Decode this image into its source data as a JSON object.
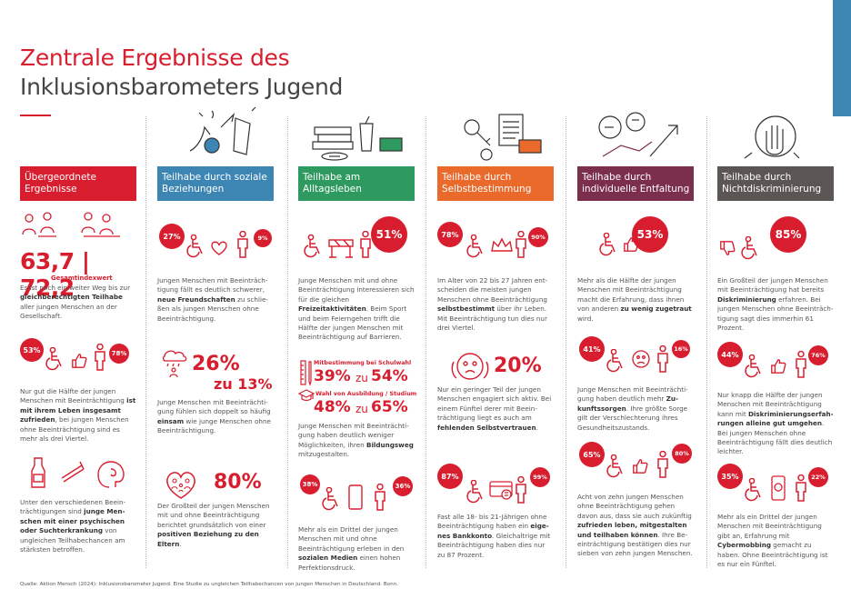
{
  "header": {
    "line1": "Zentrale Ergebnisse des",
    "line2": "Inklusionsbarometers Jugend"
  },
  "colors": {
    "red": "#d81e2e",
    "blue": "#3d86b4",
    "green": "#2f9a5f",
    "orange": "#ea6a2c",
    "purple": "#7c2f4c",
    "gray": "#5b5653"
  },
  "columns": [
    {
      "title": "Übergeordnete Ergebnisse",
      "index": "63,7 | 72,2",
      "index_label": "Gesamtindexwert",
      "p1": [
        "Es ist noch ein weiter Weg bis zur ",
        {
          "b": "gleichberechtigten Teilhabe"
        },
        " aller jungen Menschen an der Gesellschaft."
      ],
      "pct_a": "53%",
      "pct_b": "78%",
      "p2": [
        "Nur gut die Hälfte der jungen Menschen mit Beeinträchtigung ",
        {
          "b": "ist mit ihrem Leben insgesamt zufrieden"
        },
        ", bei jungen Menschen ohne Beeinträchtigung sind es mehr als drei Viertel."
      ],
      "p3": [
        "Unter den verschiedenen Beein­trächtigungen sind ",
        {
          "b": "junge Men­schen mit einer psychischen oder Suchterkrankung"
        },
        " von ungleichen Teilhabechancen am stärksten betroffen."
      ]
    },
    {
      "title": "Teilhabe durch soziale Beziehungen",
      "pct_a": "27%",
      "pct_b": "9%",
      "p1": [
        "Jungen Menschen mit Beeinträch­tigung fällt es deutlich schwerer, ",
        {
          "b": "neue Freundschaften"
        },
        " zu schlie­ßen als jungen Menschen ohne Beeinträchtigung."
      ],
      "big_a": "26%",
      "big_b": "zu 13%",
      "p2": [
        "Junge Menschen mit Beeinträchti­gung fühlen sich doppelt so häufig ",
        {
          "b": "einsam"
        },
        " wie junge Menschen ohne Beeinträchtigung."
      ],
      "big_c": "80%",
      "p3": [
        "Der Großteil der jungen Menschen mit und ohne Beeinträchtigung berichtet grundsätzlich von einer ",
        {
          "b": "positiven Beziehung zu den Eltern"
        },
        "."
      ]
    },
    {
      "title": "Teilhabe am Alltagsleben",
      "pct_a": "51%",
      "p1": [
        "Junge Menschen mit und ohne Beeinträchtigung interessieren sich für die gleichen ",
        {
          "b": "Freizeitaktivitäten"
        },
        ". Beim Sport und beim Feiern­gehen trifft die Hälfte der jungen Men­schen mit Beeinträchtigung auf Barrieren."
      ],
      "lab1": "Mitbestimmung bei Schulwahl",
      "v1a": "39%",
      "v1zu": "zu",
      "v1b": "54%",
      "lab2": "Wahl von Ausbildung / Studium",
      "v2a": "48%",
      "v2zu": "zu",
      "v2b": "65%",
      "p2": [
        "Junge Menschen mit Beeinträchti­gung haben deutlich weniger Möglichkeiten, ihren ",
        {
          "b": "Bildungsweg"
        },
        " mitzugestalten."
      ],
      "pct_b": "38%",
      "pct_c": "36%",
      "p3": [
        "Mehr als ein Drittel der jungen Men­schen mit und ohne Beeinträchti­gung erleben in den ",
        {
          "b": "sozialen Medien"
        },
        " einen hohen Perfektionsdruck."
      ]
    },
    {
      "title": "Teilhabe durch Selbstbestimmung",
      "pct_a": "78%",
      "pct_b": "90%",
      "p1": [
        "Im Alter von 22 bis 27 Jahren ent­scheiden die meisten jungen Menschen ohne Beeinträchtigung ",
        {
          "b": "selbstbestimmt"
        },
        " über ihr Leben. Mit Beeinträchtigung tun dies nur drei Viertel."
      ],
      "big_a": "20%",
      "p2": [
        "Nur ein geringer Teil der jungen Menschen engagiert sich aktiv. Bei einem Fünftel derer mit Beein­trächtigung liegt es auch am ",
        {
          "b": "fehlenden Selbstvertrauen"
        },
        "."
      ],
      "pct_c": "87%",
      "pct_d": "99%",
      "p3": [
        "Fast alle 18- bis 21-Jährigen ohne Beeinträchtigung haben ein ",
        {
          "b": "eige­nes Bankkonto"
        },
        ". Gleichaltrige mit Beeinträchtigung haben dies nur zu 87 Prozent."
      ]
    },
    {
      "title": "Teilhabe durch individuelle Entfaltung",
      "pct_a": "53%",
      "p1": [
        "Mehr als die Hälfte der jungen Menschen mit Beeinträchtigung macht die Erfahrung, dass ihnen von anderen ",
        {
          "b": "zu wenig zugetraut"
        },
        " wird."
      ],
      "pct_b": "41%",
      "pct_c": "16%",
      "p2": [
        "Junge Menschen mit Beeinträchti­gung haben deutlich mehr ",
        {
          "b": "Zu­kunftssorgen"
        },
        ". Ihre größte Sorge gilt der Verschlechterung ihres Gesundheitszustands."
      ],
      "pct_d": "65%",
      "pct_e": "80%",
      "p3": [
        "Acht von zehn jungen Menschen ohne Beeinträchtigung gehen davon aus, dass sie auch zukünftig ",
        {
          "b": "zufrieden leben, mitgestalten und teilhaben können"
        },
        ". Ihre Be­einträchtigung bestätigen dies nur sieben von zehn jungen Menschen."
      ]
    },
    {
      "title": "Teilhabe durch Nichtdiskriminierung",
      "pct_a": "85%",
      "p1": [
        "Ein Großteil der jungen Menschen mit Beeinträchtigung hat bereits ",
        {
          "b": "Diskriminierung"
        },
        " erfahren. Bei jun­gen Menschen ohne Beeinträch­tigung sagt dies immerhin 61 Prozent."
      ],
      "pct_b": "44%",
      "pct_c": "76%",
      "p2": [
        "Nur knapp die Hälfte der jungen Menschen mit Beeinträchtigung kann mit ",
        {
          "b": "Diskriminierungserfah­rungen alleine gut umgehen"
        },
        ". Bei jungen Menschen ohne Beeinträch­tigung fällt dies deutlich leichter."
      ],
      "pct_d": "35%",
      "pct_e": "22%",
      "p3": [
        "Mehr als ein Drittel der jungen Men­schen mit Beeinträchtigung gibt an, Erfahrung mit ",
        {
          "b": "Cybermobbing"
        },
        " gemacht zu haben. Ohne Beein­trächtigung ist es nur ein Fünftel."
      ]
    }
  ],
  "source": "Quelle: Aktion Mensch (2024): Inklusionsbarometer Jugend. Eine Studie zu ungleichen Teilhabechancen von jungen Menschen in Deutschland. Bonn."
}
